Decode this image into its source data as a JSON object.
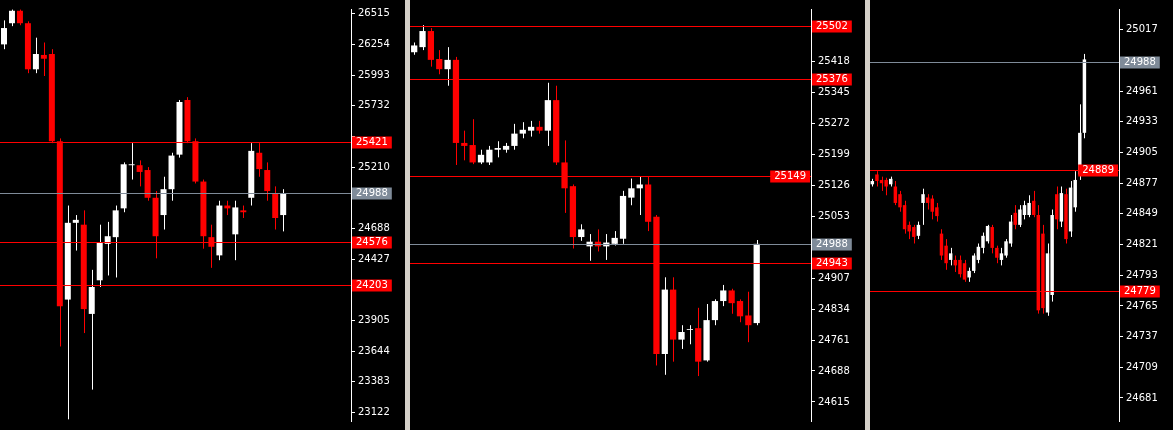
{
  "chart_data": [
    {
      "type": "candlestick",
      "categories": [
        null,
        null,
        null,
        null,
        null,
        null,
        null,
        null,
        null,
        null,
        null,
        null,
        null,
        null,
        null,
        null,
        null,
        null,
        null,
        null,
        null,
        null,
        null,
        null,
        null,
        null,
        null,
        null,
        null,
        null,
        null,
        null,
        null,
        null,
        null,
        null,
        null,
        null,
        null,
        null,
        null,
        null,
        null,
        null
      ],
      "ohlc": [
        [
          26254,
          26458,
          26213,
          26393
        ],
        [
          26434,
          26550,
          26409,
          26540
        ],
        [
          26540,
          26550,
          26417,
          26434
        ],
        [
          26434,
          26450,
          26009,
          26042
        ],
        [
          26042,
          26311,
          26009,
          26172
        ],
        [
          26164,
          26270,
          25985,
          26132
        ],
        [
          26172,
          26213,
          25414,
          25430
        ],
        [
          25430,
          25454,
          23684,
          24026
        ],
        [
          24083,
          24883,
          23064,
          24736
        ],
        [
          24736,
          24802,
          24500,
          24761
        ],
        [
          24720,
          24842,
          23798,
          24002
        ],
        [
          23961,
          24336,
          23317,
          24190
        ],
        [
          24247,
          24720,
          24190,
          24573
        ],
        [
          24557,
          24744,
          24288,
          24622
        ],
        [
          24614,
          24883,
          24271,
          24842
        ],
        [
          24859,
          25250,
          24826,
          25234
        ],
        [
          25226,
          25414,
          25104,
          25234
        ],
        [
          25226,
          25267,
          25046,
          25169
        ],
        [
          25185,
          25210,
          24924,
          24949
        ],
        [
          24949,
          25006,
          24434,
          24622
        ],
        [
          24802,
          25128,
          24679,
          25022
        ],
        [
          25022,
          25332,
          24924,
          25308
        ],
        [
          25316,
          25781,
          25291,
          25764
        ],
        [
          25781,
          25805,
          25414,
          25430
        ],
        [
          25430,
          25454,
          25071,
          25087
        ],
        [
          25087,
          25104,
          24516,
          24622
        ],
        [
          24614,
          24720,
          24353,
          24532
        ],
        [
          24459,
          24924,
          24418,
          24883
        ],
        [
          24883,
          24924,
          24802,
          24859
        ],
        [
          24638,
          24924,
          24418,
          24867
        ],
        [
          24842,
          24883,
          24777,
          24826
        ],
        [
          24949,
          25414,
          24883,
          25348
        ],
        [
          25332,
          25414,
          25128,
          25193
        ],
        [
          25185,
          25250,
          24924,
          25006
        ],
        [
          24981,
          25046,
          24679,
          24777
        ],
        [
          24802,
          25022,
          24663,
          24989
        ],
        null,
        null,
        null,
        null,
        null,
        null,
        null,
        null
      ],
      "ylim": [
        23050,
        26555
      ],
      "yticks": [
        26515,
        26254,
        25993,
        25732,
        {
          "value": 25471,
          "label": null
        },
        25210,
        {
          "value": 24949,
          "label": null
        },
        24688,
        24427,
        {
          "value": 24166,
          "label": null
        },
        23905,
        23644,
        23383,
        23122
      ],
      "ref_lines": [
        {
          "axis": "y",
          "value": 25421,
          "label": "25421",
          "color": "#ff0000"
        },
        {
          "axis": "y",
          "value": 24988,
          "label": "24988",
          "color": "#7f8b99"
        },
        {
          "axis": "y",
          "value": 24576,
          "label": "24576",
          "color": "#ff0000"
        },
        {
          "axis": "y",
          "value": 24203,
          "label": "24203",
          "color": "#ff0000"
        }
      ],
      "tick_labels": "y",
      "grid": false,
      "legend": false
    },
    {
      "type": "candlestick",
      "categories": [
        null,
        null,
        null,
        null,
        null,
        null,
        null,
        null,
        null,
        null,
        null,
        null,
        null,
        null,
        null,
        null,
        null,
        null,
        null,
        null,
        null,
        null,
        null,
        null,
        null,
        null,
        null,
        null,
        null,
        null,
        null,
        null,
        null,
        null,
        null,
        null,
        null,
        null,
        null,
        null,
        null,
        null,
        null,
        null,
        null,
        null,
        null,
        null
      ],
      "ohlc": [
        [
          25440,
          25463,
          25434,
          25456
        ],
        [
          25452,
          25504,
          25445,
          25490
        ],
        [
          25490,
          25497,
          25406,
          25422
        ],
        [
          25424,
          25445,
          25388,
          25400
        ],
        [
          25400,
          25452,
          25361,
          25422
        ],
        [
          25422,
          25429,
          25174,
          25226
        ],
        [
          25226,
          25255,
          25185,
          25219
        ],
        [
          25221,
          25282,
          25176,
          25180
        ],
        [
          25180,
          25210,
          25176,
          25198
        ],
        [
          25180,
          25219,
          25174,
          25210
        ],
        [
          25210,
          25230,
          25192,
          25214
        ],
        [
          25210,
          25226,
          25203,
          25219
        ],
        [
          25219,
          25271,
          25210,
          25248
        ],
        [
          25248,
          25275,
          25237,
          25257
        ],
        [
          25255,
          25278,
          25241,
          25264
        ],
        [
          25264,
          25278,
          25248,
          25255
        ],
        [
          25255,
          25368,
          25219,
          25327
        ],
        [
          25327,
          25361,
          25174,
          25180
        ],
        [
          25180,
          25232,
          25061,
          25119
        ],
        [
          25124,
          25128,
          24977,
          25004
        ],
        [
          25004,
          25034,
          24995,
          25022
        ],
        [
          24982,
          25011,
          24948,
          24993
        ],
        [
          24993,
          25022,
          24970,
          24982
        ],
        [
          24982,
          25011,
          24950,
          24991
        ],
        [
          24988,
          25018,
          24984,
          25002
        ],
        [
          25000,
          25113,
          24988,
          25101
        ],
        [
          25097,
          25142,
          25079,
          25119
        ],
        [
          25119,
          25147,
          25056,
          25128
        ],
        [
          25128,
          25147,
          25018,
          25040
        ],
        [
          25052,
          25056,
          24701,
          24728
        ],
        [
          24728,
          24909,
          24679,
          24880
        ],
        [
          24880,
          24909,
          24710,
          24762
        ],
        [
          24762,
          24796,
          24740,
          24780
        ],
        [
          24785,
          24796,
          24751,
          24787
        ],
        [
          24789,
          24837,
          24676,
          24710
        ],
        [
          24713,
          24846,
          24710,
          24808
        ],
        [
          24808,
          24857,
          24796,
          24853
        ],
        [
          24853,
          24891,
          24841,
          24878
        ],
        [
          24878,
          24882,
          24823,
          24848
        ],
        [
          24853,
          24857,
          24803,
          24817
        ],
        [
          24819,
          24875,
          24756,
          24796
        ],
        [
          24801,
          24997,
          24796,
          24988
        ],
        null,
        null,
        null,
        null,
        null,
        null
      ],
      "ylim": [
        24570,
        25542
      ],
      "yticks": [
        {
          "value": 25491,
          "label": null
        },
        25418,
        25345,
        25272,
        25199,
        25126,
        25053,
        {
          "value": 24980,
          "label": null
        },
        24907,
        24834,
        24761,
        24688,
        24615
      ],
      "ref_lines": [
        {
          "axis": "y",
          "value": 25502,
          "label": "25502",
          "color": "#ff0000"
        },
        {
          "axis": "y",
          "value": 25376,
          "label": "25376",
          "color": "#ff0000"
        },
        {
          "axis": "y",
          "value": 25149,
          "label": "25149",
          "color": "#ff0000"
        },
        {
          "axis": "y",
          "value": 24988,
          "label": "24988",
          "color": "#7f8b99"
        },
        {
          "axis": "y",
          "value": 24943,
          "label": "24943",
          "color": "#ff0000"
        }
      ],
      "tick_labels": "y",
      "grid": false,
      "legend": false
    },
    {
      "type": "candlestick",
      "categories": [
        null,
        null,
        null,
        null,
        null,
        null,
        null,
        null,
        null,
        null,
        null,
        null,
        null,
        null,
        null,
        null,
        null,
        null,
        null,
        null,
        null,
        null,
        null,
        null,
        null,
        null,
        null,
        null,
        null,
        null,
        null,
        null,
        null,
        null,
        null,
        null,
        null,
        null,
        null,
        null,
        null,
        null,
        null,
        null,
        null,
        null,
        null,
        null,
        null,
        null,
        null,
        null,
        null,
        null
      ],
      "ohlc": [
        [
          24876,
          24881,
          24874,
          24879
        ],
        [
          24885,
          24888,
          24874,
          24879
        ],
        [
          24880,
          24883,
          24870,
          24877
        ],
        [
          24880,
          24882,
          24866,
          24874
        ],
        [
          24876,
          24883,
          24874,
          24881
        ],
        [
          24874,
          24879,
          24857,
          24859
        ],
        [
          24867,
          24870,
          24851,
          24855
        ],
        [
          24857,
          24861,
          24831,
          24835
        ],
        [
          24839,
          24842,
          24826,
          24833
        ],
        [
          24837,
          24839,
          24822,
          24828
        ],
        [
          24829,
          24842,
          24826,
          24839
        ],
        [
          24859,
          24872,
          24839,
          24867
        ],
        [
          24864,
          24867,
          24853,
          24859
        ],
        [
          24863,
          24866,
          24844,
          24851
        ],
        [
          24855,
          24859,
          24842,
          24847
        ],
        [
          24831,
          24835,
          24807,
          24811
        ],
        [
          24820,
          24826,
          24798,
          24804
        ],
        [
          24807,
          24818,
          24802,
          24813
        ],
        [
          24807,
          24811,
          24796,
          24802
        ],
        [
          24807,
          24811,
          24791,
          24794
        ],
        [
          24804,
          24807,
          24787,
          24789
        ],
        [
          24791,
          24800,
          24787,
          24797
        ],
        [
          24797,
          24813,
          24795,
          24811
        ],
        [
          24807,
          24822,
          24804,
          24819
        ],
        [
          24818,
          24832,
          24813,
          24829
        ],
        [
          24824,
          24839,
          24822,
          24838
        ],
        [
          24837,
          24839,
          24813,
          24818
        ],
        [
          24818,
          24820,
          24804,
          24809
        ],
        [
          24807,
          24818,
          24802,
          24813
        ],
        [
          24811,
          24826,
          24809,
          24824
        ],
        [
          24822,
          24848,
          24819,
          24842
        ],
        [
          24850,
          24857,
          24835,
          24839
        ],
        [
          24839,
          24857,
          24837,
          24853
        ],
        [
          24848,
          24861,
          24844,
          24857
        ],
        [
          24848,
          24866,
          24846,
          24859
        ],
        [
          24861,
          24870,
          24846,
          24848
        ],
        [
          24848,
          24857,
          24758,
          24761
        ],
        [
          24831,
          24839,
          24758,
          24763
        ],
        [
          24759,
          24822,
          24756,
          24813
        ],
        [
          24775,
          24853,
          24769,
          24848
        ],
        [
          24867,
          24874,
          24835,
          24844
        ],
        [
          24842,
          24874,
          24837,
          24868
        ],
        [
          24867,
          24872,
          24822,
          24826
        ],
        [
          24833,
          24879,
          24828,
          24873
        ],
        [
          24855,
          24888,
          24851,
          24880
        ],
        [
          24885,
          24949,
          24880,
          24923
        ],
        [
          24923,
          24995,
          24918,
          24990
        ],
        null,
        null,
        null,
        null,
        null,
        null,
        null
      ],
      "ylim": [
        24660,
        25036
      ],
      "yticks": [
        25017,
        {
          "value": 24989,
          "label": null
        },
        24961,
        24933,
        24905,
        24877,
        24849,
        24821,
        24793,
        24765,
        24737,
        24709,
        24681
      ],
      "ref_lines": [
        {
          "axis": "y",
          "value": 24988,
          "label": "24988",
          "color": "#7f8b99"
        },
        {
          "axis": "y",
          "value": 24889,
          "label": "24889",
          "color": "#ff0000"
        },
        {
          "axis": "y",
          "value": 24779,
          "label": "24779",
          "color": "#ff0000"
        }
      ],
      "tick_labels": "y",
      "grid": false,
      "legend": false
    }
  ]
}
